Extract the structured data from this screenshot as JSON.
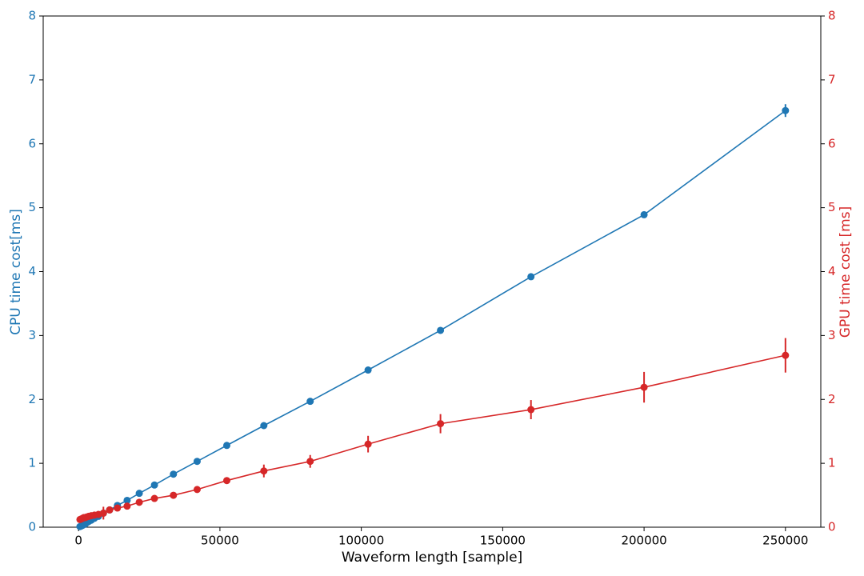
{
  "chart_data": {
    "type": "line",
    "xlabel": "Waveform length [sample]",
    "ylabel": "CPU time cost[ms]",
    "y2label": "GPU time cost [ms]",
    "x": [
      500,
      1000,
      1476,
      1845,
      2306,
      2882,
      3603,
      4504,
      5630,
      7037,
      8796,
      10995,
      13744,
      17180,
      21475,
      26844,
      33554,
      41943,
      52429,
      65536,
      81920,
      102400,
      128000,
      160000,
      200000,
      250000
    ],
    "series": [
      {
        "name": "CPU",
        "color": "#1f77b4",
        "axis": "y",
        "values": [
          0.01,
          0.02,
          0.03,
          0.04,
          0.05,
          0.07,
          0.09,
          0.11,
          0.14,
          0.17,
          0.22,
          0.27,
          0.34,
          0.42,
          0.53,
          0.66,
          0.83,
          1.03,
          1.28,
          1.59,
          1.97,
          2.46,
          3.08,
          3.92,
          4.89,
          6.52
        ],
        "errors": [
          0.005,
          0.005,
          0.005,
          0.005,
          0.005,
          0.005,
          0.005,
          0.005,
          0.005,
          0.005,
          0.01,
          0.01,
          0.01,
          0.01,
          0.01,
          0.01,
          0.01,
          0.01,
          0.01,
          0.02,
          0.02,
          0.02,
          0.02,
          0.03,
          0.03,
          0.1
        ]
      },
      {
        "name": "GPU",
        "color": "#d62728",
        "axis": "y2",
        "values": [
          0.12,
          0.13,
          0.14,
          0.15,
          0.15,
          0.16,
          0.17,
          0.18,
          0.19,
          0.2,
          0.22,
          0.27,
          0.3,
          0.33,
          0.39,
          0.45,
          0.5,
          0.59,
          0.73,
          0.88,
          1.03,
          1.3,
          1.62,
          1.84,
          2.19,
          2.69
        ],
        "errors": [
          0.02,
          0.02,
          0.02,
          0.02,
          0.02,
          0.02,
          0.03,
          0.03,
          0.03,
          0.03,
          0.1,
          0.03,
          0.04,
          0.05,
          0.03,
          0.03,
          0.03,
          0.05,
          0.03,
          0.1,
          0.1,
          0.13,
          0.15,
          0.15,
          0.24,
          0.27
        ]
      }
    ],
    "xlim": [
      -12500,
      262500
    ],
    "xticks": [
      0,
      50000,
      100000,
      150000,
      200000,
      250000
    ],
    "ylim": [
      0,
      8
    ],
    "yticks": [
      0,
      1,
      2,
      3,
      4,
      5,
      6,
      7,
      8
    ],
    "y2lim": [
      0,
      8
    ],
    "y2ticks": [
      0,
      1,
      2,
      3,
      4,
      5,
      6,
      7,
      8
    ]
  }
}
